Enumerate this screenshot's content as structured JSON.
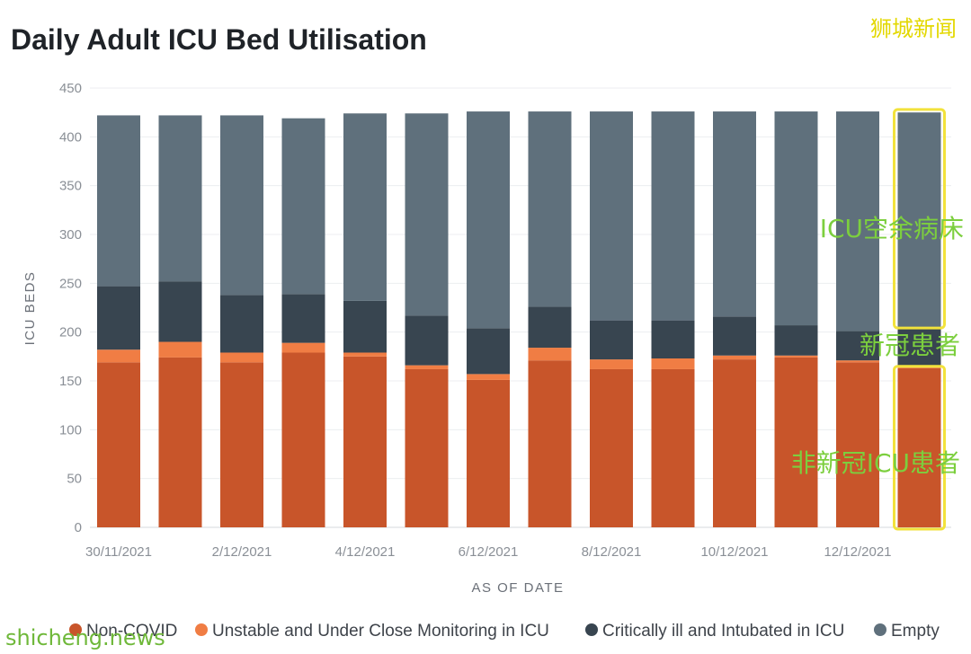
{
  "header": {
    "title": "Daily Adult ICU Bed Utilisation",
    "watermark": "狮城新闻"
  },
  "footer": {
    "site": "shicheng.news"
  },
  "annotations": {
    "empty_label": "ICU空余病床",
    "covid_label": "新冠患者",
    "noncovid_label": "非新冠ICU患者",
    "highlight_color": "#f2e23c"
  },
  "chart_data": {
    "type": "bar",
    "stacked": true,
    "title": "Daily Adult ICU Bed Utilisation",
    "xlabel": "AS OF DATE",
    "ylabel": "ICU BEDS",
    "ylim": [
      0,
      450
    ],
    "yticks": [
      0,
      50,
      100,
      150,
      200,
      250,
      300,
      350,
      400,
      450
    ],
    "grid": true,
    "legend_position": "bottom",
    "categories": [
      "30/11/2021",
      "1/12/2021",
      "2/12/2021",
      "3/12/2021",
      "4/12/2021",
      "5/12/2021",
      "6/12/2021",
      "7/12/2021",
      "8/12/2021",
      "9/12/2021",
      "10/12/2021",
      "11/12/2021",
      "12/12/2021",
      "13/12/2021"
    ],
    "xtick_labels": [
      "30/11/2021",
      "2/12/2021",
      "4/12/2021",
      "6/12/2021",
      "8/12/2021",
      "10/12/2021",
      "12/12/2021"
    ],
    "series": [
      {
        "name": "Non-COVID",
        "color": "#c8552a",
        "values": [
          169,
          174,
          169,
          179,
          175,
          162,
          151,
          171,
          162,
          162,
          172,
          174,
          169,
          163
        ]
      },
      {
        "name": "Unstable and Under Close Monitoring in ICU",
        "color": "#f07d44",
        "values": [
          13,
          16,
          10,
          10,
          4,
          4,
          6,
          13,
          10,
          11,
          4,
          2,
          2,
          2
        ]
      },
      {
        "name": "Critically ill and Intubated in ICU",
        "color": "#384550",
        "values": [
          65,
          62,
          59,
          50,
          53,
          51,
          47,
          42,
          40,
          39,
          40,
          31,
          30,
          40
        ]
      },
      {
        "name": "Empty",
        "color": "#5f707c",
        "values": [
          175,
          170,
          184,
          180,
          192,
          207,
          222,
          200,
          214,
          214,
          210,
          219,
          225,
          220
        ]
      }
    ]
  }
}
